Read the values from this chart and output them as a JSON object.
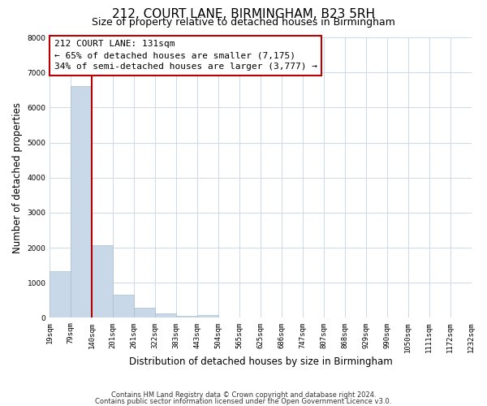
{
  "title": "212, COURT LANE, BIRMINGHAM, B23 5RH",
  "subtitle": "Size of property relative to detached houses in Birmingham",
  "xlabel": "Distribution of detached houses by size in Birmingham",
  "ylabel": "Number of detached properties",
  "bin_labels": [
    "19sqm",
    "79sqm",
    "140sqm",
    "201sqm",
    "261sqm",
    "322sqm",
    "383sqm",
    "443sqm",
    "504sqm",
    "565sqm",
    "625sqm",
    "686sqm",
    "747sqm",
    "807sqm",
    "868sqm",
    "929sqm",
    "990sqm",
    "1050sqm",
    "1111sqm",
    "1172sqm",
    "1232sqm"
  ],
  "bar_values": [
    1330,
    6600,
    2080,
    650,
    290,
    130,
    55,
    80,
    0,
    0,
    0,
    0,
    0,
    0,
    0,
    0,
    0,
    0,
    0,
    0
  ],
  "bar_color": "#c8d8e8",
  "bar_edge_color": "#a8bece",
  "vline_color": "#bb0000",
  "annotation_line1": "212 COURT LANE: 131sqm",
  "annotation_line2": "← 65% of detached houses are smaller (7,175)",
  "annotation_line3": "34% of semi-detached houses are larger (3,777) →",
  "annotation_box_color": "#ffffff",
  "annotation_box_edge_color": "#bb0000",
  "ylim": [
    0,
    8000
  ],
  "yticks": [
    0,
    1000,
    2000,
    3000,
    4000,
    5000,
    6000,
    7000,
    8000
  ],
  "footnote1": "Contains HM Land Registry data © Crown copyright and database right 2024.",
  "footnote2": "Contains public sector information licensed under the Open Government Licence v3.0.",
  "background_color": "#ffffff",
  "grid_color": "#ccd8e4",
  "title_fontsize": 11,
  "subtitle_fontsize": 9,
  "axis_label_fontsize": 8.5,
  "tick_fontsize": 6.5,
  "annotation_fontsize": 8,
  "footnote_fontsize": 6
}
